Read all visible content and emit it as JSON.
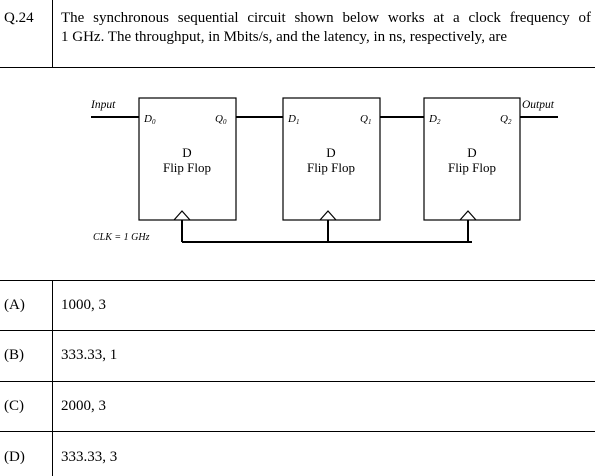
{
  "question": {
    "number": "Q.24",
    "text_line1": "The synchronous sequential circuit shown below works at a clock frequency of",
    "text_line2": "1 GHz. The throughput, in Mbits/s, and the latency, in ns, respectively, are"
  },
  "circuit": {
    "input_label": "Input",
    "output_label": "Output",
    "clock_label": "CLK = 1 GHz",
    "flip_flops": [
      {
        "d_label": "D",
        "d_sub": "0",
        "q_label": "Q",
        "q_sub": "0",
        "title1": "D",
        "title2": "Flip Flop"
      },
      {
        "d_label": "D",
        "d_sub": "1",
        "q_label": "Q",
        "q_sub": "1",
        "title1": "D",
        "title2": "Flip Flop"
      },
      {
        "d_label": "D",
        "d_sub": "2",
        "q_label": "Q",
        "q_sub": "2",
        "title1": "D",
        "title2": "Flip Flop"
      }
    ]
  },
  "options": [
    {
      "label": "(A)",
      "value": "1000, 3"
    },
    {
      "label": "(B)",
      "value": "333.33, 1"
    },
    {
      "label": "(C)",
      "value": "2000, 3"
    },
    {
      "label": "(D)",
      "value": "333.33, 3"
    }
  ]
}
